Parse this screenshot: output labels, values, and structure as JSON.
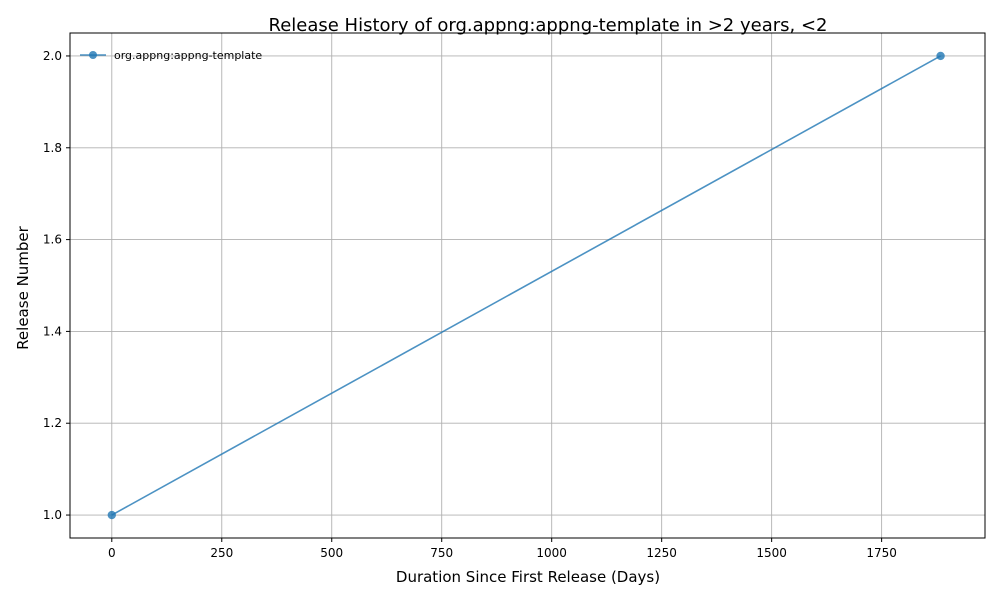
{
  "chart_data": {
    "type": "line",
    "title": "Release History of org.appng:appng-template in >2 years, <2",
    "xlabel": "Duration Since First Release (Days)",
    "ylabel": "Release Number",
    "xlim": [
      -95,
      1985
    ],
    "ylim": [
      0.95,
      2.05
    ],
    "x_ticks": [
      0,
      250,
      500,
      750,
      1000,
      1250,
      1500,
      1750
    ],
    "x_tick_labels": [
      "0",
      "250",
      "500",
      "750",
      "1000",
      "1250",
      "1500",
      "1750"
    ],
    "y_ticks": [
      1.0,
      1.2,
      1.4,
      1.6,
      1.8,
      2.0
    ],
    "y_tick_labels": [
      "1.0",
      "1.2",
      "1.4",
      "1.6",
      "1.8",
      "2.0"
    ],
    "grid": true,
    "legend_position": "top-left",
    "series": [
      {
        "name": "org.appng:appng-template",
        "color": "#1f77b4",
        "marker": "circle",
        "x": [
          0,
          1884
        ],
        "y": [
          1,
          2
        ]
      }
    ]
  }
}
